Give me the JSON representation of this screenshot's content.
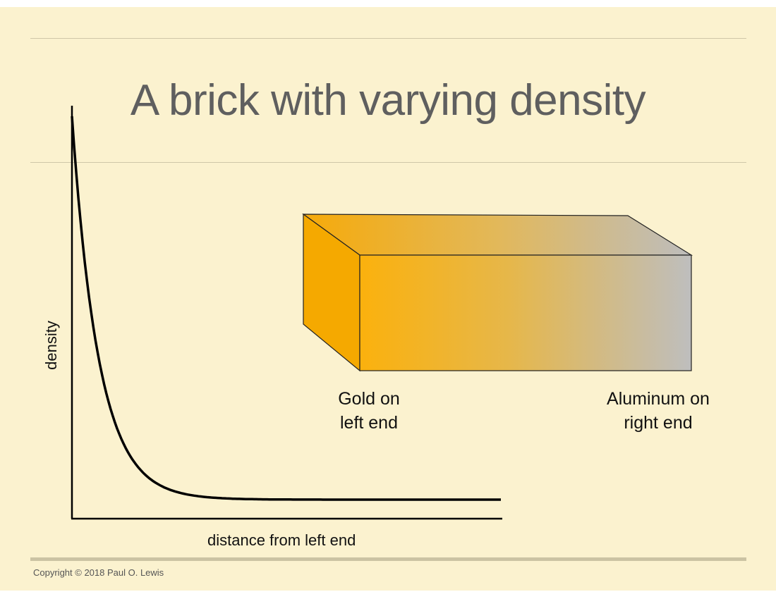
{
  "title": "A brick with varying density",
  "graph": {
    "ylabel": "density",
    "xlabel": "distance from left end",
    "curve": "exponential-decay",
    "axis_color": "#000000"
  },
  "brick": {
    "left_label": [
      "Gold on",
      "left end"
    ],
    "right_label": [
      "Aluminum on",
      "right end"
    ],
    "gradient_colors": {
      "gold": "#f6a800",
      "mid": "#e6b64a",
      "aluminum": "#bdbdbd"
    }
  },
  "footer": {
    "copyright": "Copyright © 2018 Paul O. Lewis"
  }
}
